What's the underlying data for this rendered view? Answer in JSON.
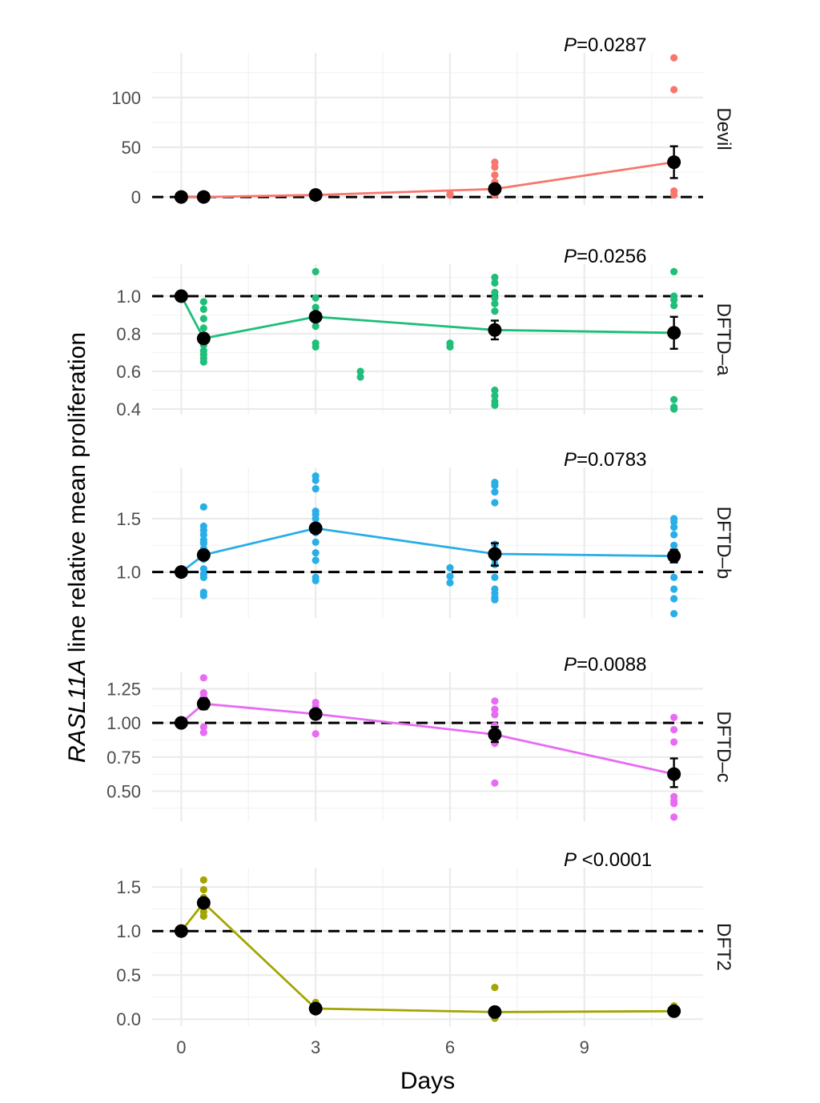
{
  "chart_data": {
    "type": "line",
    "xlabel": "Days",
    "ylabel_italic": "RASL11A",
    "ylabel_rest": " line relative mean proliferation",
    "x_ticks": [
      0,
      3,
      6,
      9
    ],
    "x_tick_labels": [
      "0",
      "3",
      "6",
      "9"
    ],
    "xlim": [
      -0.65,
      11.65
    ],
    "reference_line": 1,
    "panels": [
      {
        "name": "Devil",
        "color": "#F8766D",
        "p_label": "P",
        "p_value": "=0.0287",
        "ylim": [
          -8,
          145
        ],
        "y_ticks": [
          0,
          50,
          100
        ],
        "y_tick_labels": [
          "0",
          "50",
          "100"
        ],
        "reference_line": 0,
        "mean": {
          "x": [
            0,
            0.5,
            3,
            7,
            11
          ],
          "y": [
            0,
            0,
            2,
            8,
            35
          ]
        },
        "errors": [
          {
            "x": 11,
            "lo": 19,
            "hi": 51
          }
        ],
        "points": [
          [
            0.5,
            0
          ],
          [
            0.5,
            0.5
          ],
          [
            3,
            1
          ],
          [
            3,
            3
          ],
          [
            6,
            2
          ],
          [
            6,
            3
          ],
          [
            7,
            35
          ],
          [
            7,
            30
          ],
          [
            7,
            22
          ],
          [
            7,
            15
          ],
          [
            7,
            5
          ],
          [
            7,
            2
          ],
          [
            11,
            140
          ],
          [
            11,
            108
          ],
          [
            11,
            6
          ],
          [
            11,
            2
          ]
        ]
      },
      {
        "name": "DFTD–a",
        "color": "#1FBE7A",
        "p_label": "P",
        "p_value": "=0.0256",
        "ylim": [
          0.37,
          1.17
        ],
        "y_ticks": [
          0.4,
          0.6,
          0.8,
          1.0
        ],
        "y_tick_labels": [
          "0.4",
          "0.6",
          "0.8",
          "1.0"
        ],
        "reference_line": 1,
        "mean": {
          "x": [
            0,
            0.5,
            3,
            7,
            11
          ],
          "y": [
            1.0,
            0.775,
            0.89,
            0.82,
            0.805
          ]
        },
        "errors": [
          {
            "x": 7,
            "lo": 0.77,
            "hi": 0.87
          },
          {
            "x": 11,
            "lo": 0.72,
            "hi": 0.89
          }
        ],
        "points": [
          [
            0.5,
            0.97
          ],
          [
            0.5,
            0.93
          ],
          [
            0.5,
            0.88
          ],
          [
            0.5,
            0.83
          ],
          [
            0.5,
            0.78
          ],
          [
            0.5,
            0.74
          ],
          [
            0.5,
            0.71
          ],
          [
            0.5,
            0.69
          ],
          [
            0.5,
            0.67
          ],
          [
            0.5,
            0.65
          ],
          [
            3,
            1.13
          ],
          [
            3,
            0.99
          ],
          [
            3,
            0.94
          ],
          [
            3,
            0.91
          ],
          [
            3,
            0.88
          ],
          [
            3,
            0.84
          ],
          [
            3,
            0.75
          ],
          [
            3,
            0.73
          ],
          [
            4,
            0.6
          ],
          [
            4,
            0.57
          ],
          [
            6,
            0.75
          ],
          [
            6,
            0.73
          ],
          [
            7,
            1.1
          ],
          [
            7,
            1.07
          ],
          [
            7,
            1.02
          ],
          [
            7,
            0.99
          ],
          [
            7,
            0.96
          ],
          [
            7,
            0.92
          ],
          [
            7,
            0.5
          ],
          [
            7,
            0.47
          ],
          [
            7,
            0.44
          ],
          [
            7,
            0.42
          ],
          [
            11,
            1.13
          ],
          [
            11,
            1.0
          ],
          [
            11,
            0.98
          ],
          [
            11,
            0.95
          ],
          [
            11,
            0.45
          ],
          [
            11,
            0.41
          ],
          [
            11,
            0.4
          ]
        ]
      },
      {
        "name": "DFTD–b",
        "color": "#29AEE8",
        "p_label": "P",
        "p_value": "=0.0783",
        "ylim": [
          0.57,
          1.98
        ],
        "y_ticks": [
          1.0,
          1.5
        ],
        "y_tick_labels": [
          "1.0",
          "1.5"
        ],
        "reference_line": 1,
        "mean": {
          "x": [
            0,
            0.5,
            3,
            7,
            11
          ],
          "y": [
            1.0,
            1.16,
            1.41,
            1.17,
            1.15
          ]
        },
        "errors": [
          {
            "x": 7,
            "lo": 1.06,
            "hi": 1.27
          },
          {
            "x": 11,
            "lo": 1.09,
            "hi": 1.21
          }
        ],
        "points": [
          [
            0.5,
            1.61
          ],
          [
            0.5,
            1.43
          ],
          [
            0.5,
            1.39
          ],
          [
            0.5,
            1.35
          ],
          [
            0.5,
            1.3
          ],
          [
            0.5,
            1.27
          ],
          [
            0.5,
            1.22
          ],
          [
            0.5,
            1.17
          ],
          [
            0.5,
            1.12
          ],
          [
            0.5,
            1.03
          ],
          [
            0.5,
            0.98
          ],
          [
            0.5,
            0.95
          ],
          [
            0.5,
            0.81
          ],
          [
            0.5,
            0.78
          ],
          [
            3,
            1.9
          ],
          [
            3,
            1.86
          ],
          [
            3,
            1.78
          ],
          [
            3,
            1.57
          ],
          [
            3,
            1.54
          ],
          [
            3,
            1.5
          ],
          [
            3,
            1.37
          ],
          [
            3,
            1.28
          ],
          [
            3,
            1.18
          ],
          [
            3,
            1.11
          ],
          [
            3,
            0.95
          ],
          [
            3,
            0.92
          ],
          [
            6,
            1.04
          ],
          [
            6,
            0.96
          ],
          [
            6,
            0.9
          ],
          [
            7,
            1.84
          ],
          [
            7,
            1.81
          ],
          [
            7,
            1.75
          ],
          [
            7,
            1.65
          ],
          [
            7,
            1.26
          ],
          [
            7,
            1.18
          ],
          [
            7,
            1.12
          ],
          [
            7,
            1.07
          ],
          [
            7,
            0.95
          ],
          [
            7,
            0.84
          ],
          [
            7,
            0.8
          ],
          [
            7,
            0.76
          ],
          [
            7,
            0.74
          ],
          [
            11,
            1.5
          ],
          [
            11,
            1.47
          ],
          [
            11,
            1.42
          ],
          [
            11,
            1.35
          ],
          [
            11,
            1.25
          ],
          [
            11,
            0.95
          ],
          [
            11,
            0.84
          ],
          [
            11,
            0.75
          ],
          [
            11,
            0.61
          ]
        ]
      },
      {
        "name": "DFTD–c",
        "color": "#E76BF3",
        "p_label": "P",
        "p_value": "=0.0088",
        "ylim": [
          0.28,
          1.37
        ],
        "y_ticks": [
          0.5,
          0.75,
          1.0,
          1.25
        ],
        "y_tick_labels": [
          "0.50",
          "0.75",
          "1.00",
          "1.25"
        ],
        "reference_line": 1,
        "mean": {
          "x": [
            0,
            0.5,
            3,
            7,
            11
          ],
          "y": [
            1.0,
            1.14,
            1.065,
            0.915,
            0.625
          ]
        },
        "errors": [
          {
            "x": 0.5,
            "lo": 1.1,
            "hi": 1.18
          },
          {
            "x": 3,
            "lo": 1.03,
            "hi": 1.1
          },
          {
            "x": 7,
            "lo": 0.86,
            "hi": 0.97
          },
          {
            "x": 11,
            "lo": 0.53,
            "hi": 0.74
          }
        ],
        "points": [
          [
            0.5,
            1.33
          ],
          [
            0.5,
            1.22
          ],
          [
            0.5,
            1.19
          ],
          [
            0.5,
            1.13
          ],
          [
            0.5,
            0.97
          ],
          [
            0.5,
            0.93
          ],
          [
            3,
            1.15
          ],
          [
            3,
            1.12
          ],
          [
            3,
            1.08
          ],
          [
            3,
            1.04
          ],
          [
            3,
            0.92
          ],
          [
            7,
            1.16
          ],
          [
            7,
            1.1
          ],
          [
            7,
            1.06
          ],
          [
            7,
            0.98
          ],
          [
            7,
            0.88
          ],
          [
            7,
            0.85
          ],
          [
            7,
            0.56
          ],
          [
            11,
            1.04
          ],
          [
            11,
            0.95
          ],
          [
            11,
            0.86
          ],
          [
            11,
            0.46
          ],
          [
            11,
            0.43
          ],
          [
            11,
            0.41
          ],
          [
            11,
            0.31
          ]
        ]
      },
      {
        "name": "DFT2",
        "color": "#A3A500",
        "p_label": "P",
        "p_value": " <0.0001",
        "ylim": [
          -0.08,
          1.72
        ],
        "y_ticks": [
          0.0,
          0.5,
          1.0,
          1.5
        ],
        "y_tick_labels": [
          "0.0",
          "0.5",
          "1.0",
          "1.5"
        ],
        "reference_line": 1,
        "mean": {
          "x": [
            0,
            0.5,
            3,
            7,
            11
          ],
          "y": [
            1.0,
            1.32,
            0.12,
            0.08,
            0.09
          ]
        },
        "errors": [],
        "points": [
          [
            0.5,
            1.58
          ],
          [
            0.5,
            1.47
          ],
          [
            0.5,
            1.38
          ],
          [
            0.5,
            1.3
          ],
          [
            0.5,
            1.22
          ],
          [
            0.5,
            1.17
          ],
          [
            3,
            0.19
          ],
          [
            3,
            0.15
          ],
          [
            3,
            0.1
          ],
          [
            3,
            0.08
          ],
          [
            7,
            0.36
          ],
          [
            7,
            0.07
          ],
          [
            7,
            0.03
          ],
          [
            7,
            0.01
          ],
          [
            11,
            0.15
          ],
          [
            11,
            0.11
          ],
          [
            11,
            0.06
          ]
        ]
      }
    ]
  }
}
